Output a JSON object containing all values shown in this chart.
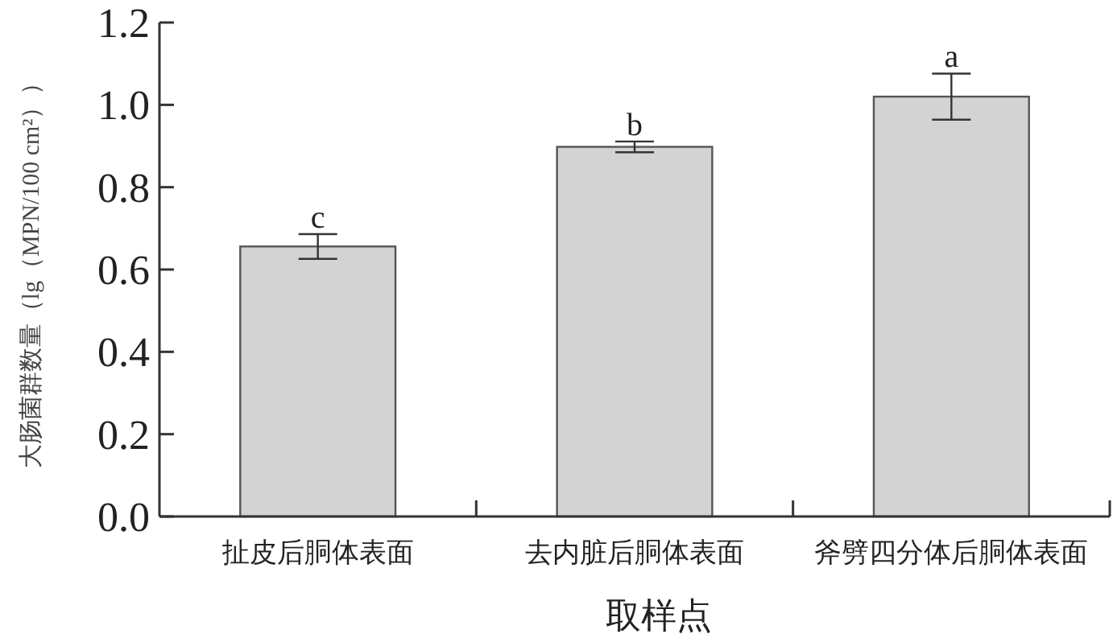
{
  "chart_data": {
    "type": "bar",
    "xlabel": "取样点",
    "ylabel": "大肠菌群数量（lg（MPN/100 cm²））",
    "categories": [
      "扯皮后胴体表面",
      "去内脏后胴体表面",
      "斧劈四分体后胴体表面"
    ],
    "values": [
      0.656,
      0.898,
      1.02
    ],
    "errors": [
      0.03,
      0.013,
      0.056
    ],
    "color": "#d3d3d3",
    "ylim": [
      0,
      1.2
    ],
    "yticks": [
      {
        "value": 0,
        "label": "0.0"
      },
      0.2,
      0.4,
      0.6,
      0.8,
      {
        "value": 1,
        "label": "1.0"
      },
      1.2
    ],
    "annotations": [
      {
        "text": "c",
        "x": "扯皮后胴体表面",
        "y": 0.686
      },
      {
        "text": "b",
        "x": "去内脏后胴体表面",
        "y": 0.911
      },
      {
        "text": "a",
        "x": "斧劈四分体后胴体表面",
        "y": 1.076
      }
    ]
  }
}
